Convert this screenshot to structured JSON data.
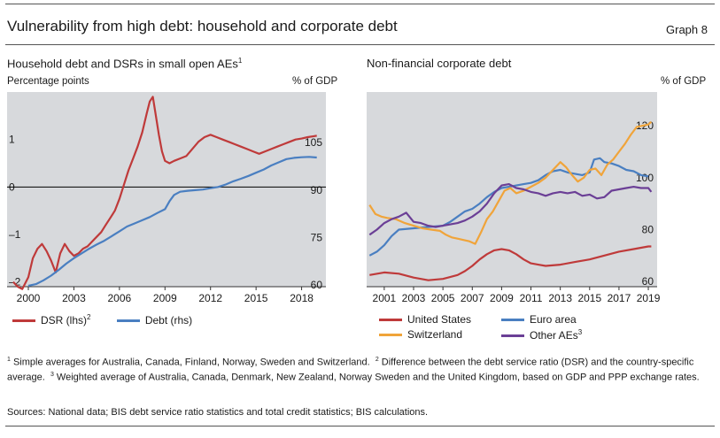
{
  "header": {
    "title": "Vulnerability from high debt: household and corporate debt",
    "graph_no": "Graph 8"
  },
  "colors": {
    "red": "#bf3a3a",
    "blue": "#4a7fc1",
    "orange": "#f0a43a",
    "purple": "#6b3f96",
    "panel_bg": "#d7d9dc"
  },
  "left": {
    "title": "Household debt and DSRs in small open AEs",
    "title_sup": "1",
    "lhs_unit": "Percentage points",
    "rhs_unit": "% of GDP",
    "legend": [
      {
        "label": "DSR (lhs)",
        "sup": "2",
        "color": "#bf3a3a"
      },
      {
        "label": "Debt (rhs)",
        "sup": "",
        "color": "#4a7fc1"
      }
    ]
  },
  "right": {
    "title": "Non-financial corporate debt",
    "rhs_unit": "% of GDP",
    "legend": [
      {
        "label": "United States",
        "sup": "",
        "color": "#bf3a3a"
      },
      {
        "label": "Euro area",
        "sup": "",
        "color": "#4a7fc1"
      },
      {
        "label": "Switzerland",
        "sup": "",
        "color": "#f0a43a"
      },
      {
        "label": "Other AEs",
        "sup": "3",
        "color": "#6b3f96"
      }
    ]
  },
  "footnotes": {
    "n1_mark": "1",
    "n1": "Simple averages for Australia, Canada, Finland, Norway, Sweden and Switzerland.",
    "n2_mark": "2",
    "n2": "Difference between the debt service ratio (DSR) and the country-specific average.",
    "n3_mark": "3",
    "n3": "Weighted average of Australia, Canada, Denmark, New Zealand, Norway Sweden and the United Kingdom, based on GDP and PPP exchange rates.",
    "sources": "Sources: National data; BIS debt service ratio statistics and total credit statistics; BIS calculations."
  },
  "chart_data": [
    {
      "type": "line",
      "title": "Household debt and DSRs in small open AEs",
      "x_ticks": [
        2000,
        2003,
        2006,
        2009,
        2012,
        2015,
        2018
      ],
      "x_tick_labels": [
        "2000",
        "2003",
        "2006",
        "2009",
        "2012",
        "2015",
        "2018"
      ],
      "xlim": [
        1998.6,
        2019.6
      ],
      "lhs": {
        "label": "Percentage points",
        "ticks": [
          -2,
          -1,
          0,
          1
        ],
        "tick_labels": [
          "–2",
          "–1",
          "0",
          "1"
        ],
        "ylim": [
          -2.1,
          2.0
        ]
      },
      "rhs": {
        "label": "% of GDP",
        "ticks": [
          60,
          75,
          90,
          105
        ],
        "tick_labels": [
          "60",
          "75",
          "90",
          "105"
        ],
        "ylim": [
          59.5,
          121
        ]
      },
      "reference_line": {
        "axis": "lhs",
        "y": 0
      },
      "series": [
        {
          "name": "DSR (lhs)",
          "axis": "lhs",
          "color": "#bf3a3a",
          "x": [
            1999.0,
            1999.3,
            1999.6,
            2000.0,
            2000.3,
            2000.6,
            2000.9,
            2001.2,
            2001.5,
            2001.8,
            2002.1,
            2002.4,
            2002.7,
            2003.0,
            2003.3,
            2003.6,
            2003.9,
            2004.2,
            2004.5,
            2004.8,
            2005.1,
            2005.4,
            2005.7,
            2006.0,
            2006.3,
            2006.6,
            2006.9,
            2007.2,
            2007.5,
            2007.8,
            2008.0,
            2008.2,
            2008.4,
            2008.6,
            2008.8,
            2009.0,
            2009.3,
            2009.6,
            2010.0,
            2010.4,
            2010.8,
            2011.2,
            2011.6,
            2012.0,
            2012.4,
            2012.8,
            2013.2,
            2013.6,
            2014.0,
            2014.4,
            2014.8,
            2015.2,
            2015.6,
            2016.0,
            2016.4,
            2016.8,
            2017.2,
            2017.6,
            2018.0,
            2018.4,
            2018.8,
            2019.0
          ],
          "y": [
            -2.0,
            -2.1,
            -2.15,
            -1.9,
            -1.5,
            -1.3,
            -1.2,
            -1.35,
            -1.55,
            -1.8,
            -1.4,
            -1.2,
            -1.35,
            -1.45,
            -1.4,
            -1.3,
            -1.25,
            -1.15,
            -1.05,
            -0.95,
            -0.8,
            -0.65,
            -0.5,
            -0.25,
            0.05,
            0.35,
            0.6,
            0.85,
            1.15,
            1.55,
            1.8,
            1.9,
            1.5,
            1.1,
            0.75,
            0.55,
            0.5,
            0.55,
            0.6,
            0.65,
            0.8,
            0.95,
            1.05,
            1.1,
            1.05,
            1.0,
            0.95,
            0.9,
            0.85,
            0.8,
            0.75,
            0.7,
            0.75,
            0.8,
            0.85,
            0.9,
            0.95,
            1.0,
            1.02,
            1.05,
            1.07,
            1.08
          ]
        },
        {
          "name": "Debt (rhs)",
          "axis": "rhs",
          "color": "#4a7fc1",
          "x": [
            2000.0,
            2000.5,
            2001.0,
            2001.5,
            2002.0,
            2002.5,
            2003.0,
            2003.5,
            2004.0,
            2004.5,
            2005.0,
            2005.5,
            2006.0,
            2006.5,
            2007.0,
            2007.5,
            2008.0,
            2008.5,
            2009.0,
            2009.3,
            2009.6,
            2010.0,
            2010.5,
            2011.0,
            2011.5,
            2012.0,
            2012.5,
            2013.0,
            2013.5,
            2014.0,
            2014.5,
            2015.0,
            2015.5,
            2016.0,
            2016.5,
            2017.0,
            2017.5,
            2018.0,
            2018.5,
            2019.0
          ],
          "y": [
            59.8,
            60.3,
            61.5,
            63.0,
            64.8,
            66.8,
            68.5,
            70.0,
            71.5,
            72.8,
            74.0,
            75.5,
            77.0,
            78.5,
            79.5,
            80.5,
            81.5,
            82.8,
            84.0,
            86.5,
            88.5,
            89.5,
            89.8,
            90.0,
            90.2,
            90.6,
            91.0,
            91.8,
            92.8,
            93.6,
            94.5,
            95.5,
            96.5,
            97.8,
            98.8,
            99.8,
            100.2,
            100.4,
            100.5,
            100.3
          ]
        }
      ]
    },
    {
      "type": "line",
      "title": "Non-financial corporate debt",
      "x_ticks": [
        2001,
        2003,
        2005,
        2007,
        2009,
        2011,
        2013,
        2015,
        2017,
        2019
      ],
      "x_tick_labels": [
        "2001",
        "2003",
        "2005",
        "2007",
        "2009",
        "2011",
        "2013",
        "2015",
        "2017",
        "2019"
      ],
      "xlim": [
        1999.8,
        2019.6
      ],
      "rhs": {
        "label": "% of GDP",
        "ticks": [
          60,
          80,
          100,
          120
        ],
        "tick_labels": [
          "60",
          "80",
          "100",
          "120"
        ],
        "ylim": [
          58,
          133
        ]
      },
      "series": [
        {
          "name": "United States",
          "color": "#bf3a3a",
          "x": [
            2000.0,
            2001.0,
            2002.0,
            2003.0,
            2004.0,
            2005.0,
            2006.0,
            2006.5,
            2007.0,
            2007.5,
            2008.0,
            2008.5,
            2009.0,
            2009.5,
            2010.0,
            2010.5,
            2011.0,
            2011.5,
            2012.0,
            2013.0,
            2014.0,
            2015.0,
            2016.0,
            2017.0,
            2018.0,
            2019.0,
            2019.2
          ],
          "y": [
            62.5,
            63.5,
            63.0,
            61.5,
            60.5,
            61.0,
            62.5,
            64.0,
            66.0,
            68.5,
            70.5,
            72.0,
            72.5,
            72.0,
            70.5,
            68.5,
            67.0,
            66.5,
            66.0,
            66.5,
            67.5,
            68.5,
            70.0,
            71.5,
            72.5,
            73.5,
            73.5
          ]
        },
        {
          "name": "Euro area",
          "color": "#4a7fc1",
          "x": [
            2000.0,
            2000.5,
            2001.0,
            2001.5,
            2002.0,
            2003.0,
            2004.0,
            2005.0,
            2005.5,
            2006.0,
            2006.5,
            2007.0,
            2007.5,
            2008.0,
            2008.5,
            2009.0,
            2009.5,
            2010.0,
            2010.5,
            2011.0,
            2011.5,
            2012.0,
            2012.5,
            2013.0,
            2013.5,
            2014.0,
            2014.5,
            2015.0,
            2015.3,
            2015.7,
            2016.0,
            2016.5,
            2017.0,
            2017.5,
            2018.0,
            2018.5,
            2019.0
          ],
          "y": [
            70.0,
            71.5,
            74.0,
            77.5,
            80.0,
            80.5,
            81.0,
            81.5,
            83.0,
            85.0,
            87.0,
            88.0,
            90.0,
            92.5,
            94.5,
            96.0,
            96.5,
            97.0,
            97.5,
            98.0,
            99.0,
            101.0,
            102.5,
            103.0,
            102.0,
            101.5,
            101.0,
            102.0,
            107.0,
            107.5,
            106.0,
            105.5,
            104.5,
            103.0,
            102.5,
            101.0,
            100.5
          ]
        },
        {
          "name": "Switzerland",
          "color": "#f0a43a",
          "x": [
            2000.0,
            2000.4,
            2000.8,
            2001.2,
            2001.8,
            2002.4,
            2003.0,
            2003.6,
            2004.2,
            2004.8,
            2005.2,
            2005.6,
            2006.0,
            2006.4,
            2006.8,
            2007.2,
            2007.6,
            2008.0,
            2008.4,
            2008.8,
            2009.2,
            2009.6,
            2010.0,
            2010.5,
            2011.0,
            2011.5,
            2012.0,
            2012.5,
            2013.0,
            2013.4,
            2013.8,
            2014.2,
            2014.6,
            2015.0,
            2015.4,
            2015.8,
            2016.2,
            2016.6,
            2017.0,
            2017.4,
            2017.8,
            2018.2,
            2018.6,
            2019.0,
            2019.2
          ],
          "y": [
            89.5,
            86.0,
            85.0,
            84.5,
            84.0,
            82.5,
            81.5,
            80.5,
            80.0,
            79.5,
            78.0,
            77.0,
            76.5,
            76.0,
            75.5,
            74.5,
            79.0,
            84.0,
            87.0,
            91.0,
            95.0,
            96.0,
            94.0,
            95.0,
            96.5,
            98.0,
            100.0,
            103.0,
            106.0,
            104.0,
            101.0,
            98.5,
            100.0,
            103.0,
            103.5,
            101.0,
            105.0,
            107.0,
            110.0,
            113.0,
            116.5,
            119.5,
            120.0,
            120.5,
            121.5
          ]
        },
        {
          "name": "Other AEs",
          "sup": "3",
          "color": "#6b3f96",
          "x": [
            2000.0,
            2000.5,
            2001.0,
            2001.5,
            2002.0,
            2002.5,
            2003.0,
            2003.5,
            2004.0,
            2004.5,
            2005.0,
            2005.5,
            2006.0,
            2006.5,
            2007.0,
            2007.5,
            2008.0,
            2008.5,
            2009.0,
            2009.5,
            2010.0,
            2010.5,
            2011.0,
            2011.5,
            2012.0,
            2012.5,
            2013.0,
            2013.5,
            2014.0,
            2014.5,
            2015.0,
            2015.5,
            2016.0,
            2016.5,
            2017.0,
            2017.5,
            2018.0,
            2018.5,
            2019.0,
            2019.2
          ],
          "y": [
            78.0,
            80.0,
            82.5,
            84.0,
            85.0,
            86.5,
            83.0,
            82.5,
            81.5,
            81.0,
            81.5,
            82.0,
            82.5,
            83.5,
            85.0,
            87.0,
            90.0,
            94.0,
            97.0,
            97.5,
            96.0,
            95.5,
            94.5,
            94.0,
            93.0,
            94.0,
            94.5,
            94.0,
            94.5,
            93.0,
            93.5,
            92.0,
            92.5,
            95.0,
            95.5,
            96.0,
            96.5,
            96.0,
            96.0,
            94.5
          ]
        }
      ]
    }
  ]
}
